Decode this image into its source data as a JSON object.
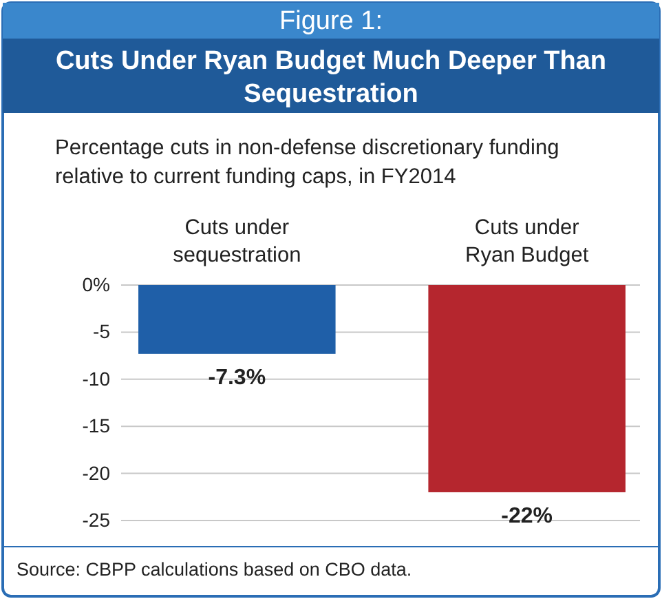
{
  "chart_data": {
    "type": "bar",
    "title": "Cuts Under Ryan Budget Much Deeper Than Sequestration",
    "subtitle": "Percentage cuts in non-defense discretionary funding relative to current funding caps, in FY2014",
    "annotations": [
      "Figure 1:",
      "Source: CBPP calculations based on CBO data."
    ],
    "categories": [
      "Cuts under sequestration",
      "Cuts under Ryan Budget"
    ],
    "values": [
      -7.3,
      -22
    ],
    "colors": [
      "#1f5fa8",
      "#b5262e"
    ],
    "value_labels": [
      "-7.3%",
      "-22%"
    ],
    "ylim": [
      -25,
      0
    ],
    "yticks": [
      {
        "value": 0,
        "label": "0%"
      },
      -5,
      -10,
      -15,
      -20,
      -25
    ],
    "grid": "y"
  }
}
